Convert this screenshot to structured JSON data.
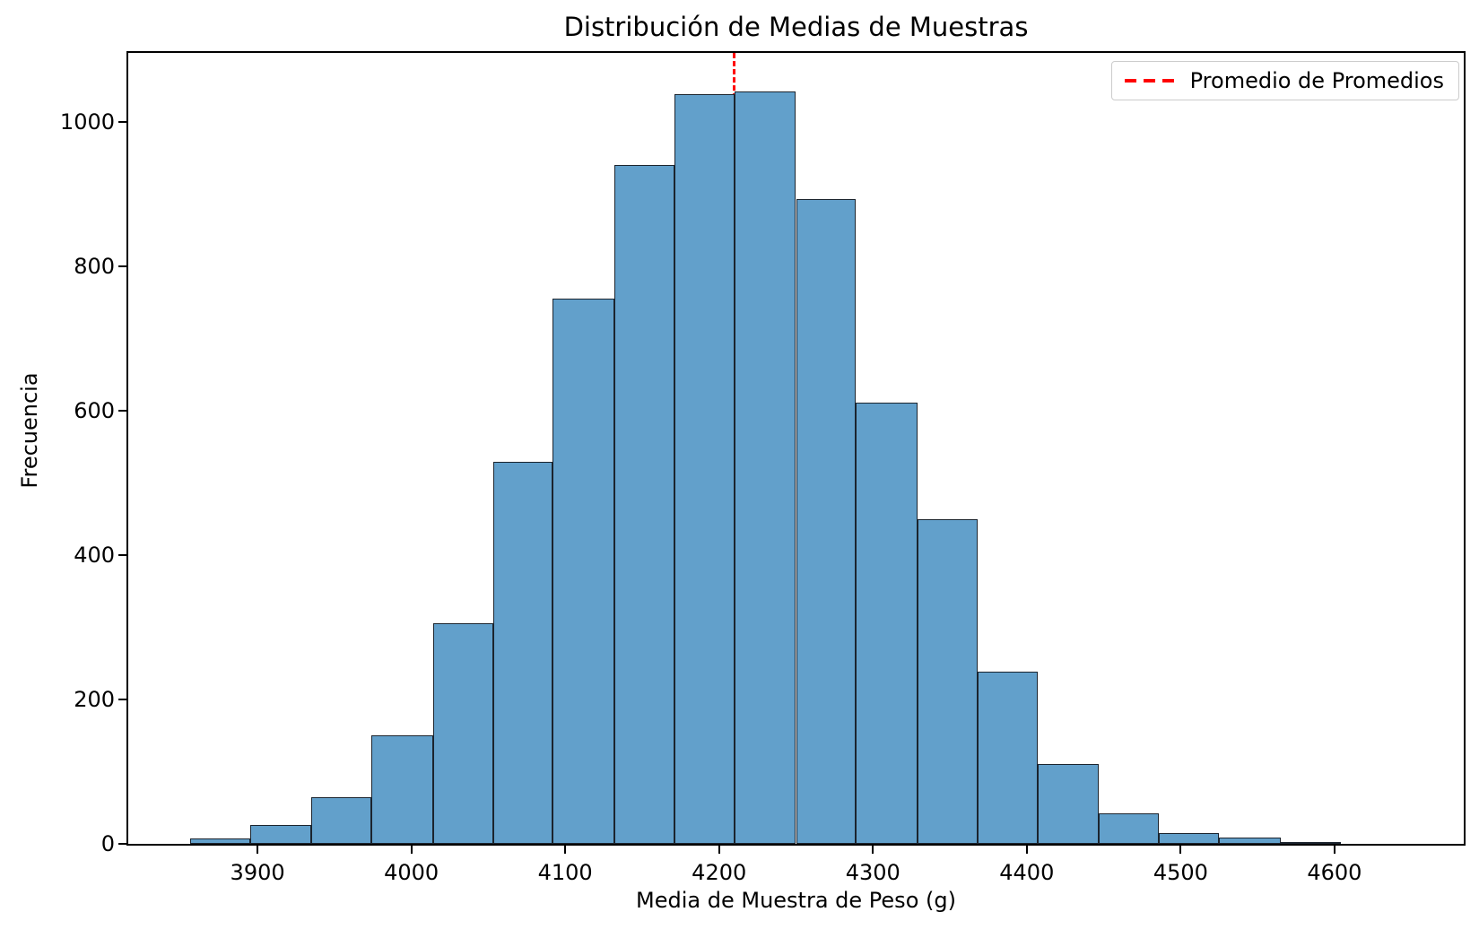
{
  "chart_data": {
    "type": "bar",
    "subtype": "histogram",
    "title": "Distribución de Medias de Muestras",
    "xlabel": "Media de Muestra de Peso (g)",
    "ylabel": "Frecuencia",
    "bin_edges": [
      3856,
      3895,
      3935,
      3974,
      4014,
      4053,
      4092,
      4132,
      4171,
      4210,
      4250,
      4289,
      4329,
      4368,
      4407,
      4447,
      4486,
      4525,
      4565,
      4604
    ],
    "counts": [
      7,
      26,
      64,
      150,
      305,
      529,
      755,
      940,
      1038,
      1041,
      893,
      611,
      449,
      238,
      110,
      42,
      15,
      9,
      2
    ],
    "x_ticks": [
      3900,
      4000,
      4100,
      4200,
      4300,
      4400,
      4500,
      4600
    ],
    "y_ticks": [
      0,
      200,
      400,
      600,
      800,
      1000
    ],
    "xlim": [
      3816,
      4684
    ],
    "ylim": [
      0,
      1095
    ],
    "grid": false,
    "legend": {
      "position": "upper right",
      "entries": [
        {
          "label": "Promedio de Promedios",
          "color": "#ff0000",
          "style": "dashed"
        }
      ]
    },
    "mean_line": {
      "x": 4210,
      "color": "#ff0000",
      "style": "dashed",
      "drawn_behind_bars": true
    },
    "colors": {
      "bar_fill": "#62a0cb",
      "bar_edge": "#1b242e",
      "spine": "#000000",
      "legend_border": "#cccccc",
      "text": "#000000"
    }
  }
}
